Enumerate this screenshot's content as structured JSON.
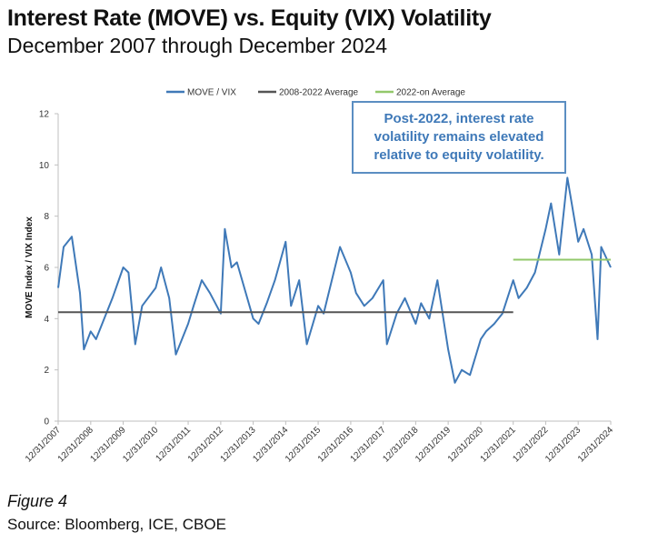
{
  "title": "Interest Rate (MOVE) vs. Equity (VIX) Volatility",
  "subtitle": "December 2007 through December 2024",
  "figure_label": "Figure 4",
  "source": "Source: Bloomberg, ICE, CBOE",
  "callout": {
    "line1": "Post-2022, interest rate",
    "line2": "volatility remains elevated",
    "line3": "relative to equity volatility."
  },
  "chart_data": {
    "type": "line",
    "ylabel": "MOVE Index / VIX Index",
    "ylim": [
      0,
      12
    ],
    "yticks": [
      "0",
      "2",
      "4",
      "6",
      "8",
      "10",
      "12"
    ],
    "xlim": [
      "2007-12-31",
      "2024-12-31"
    ],
    "xticks": [
      "12/31/2007",
      "12/31/2008",
      "12/31/2009",
      "12/31/2010",
      "12/31/2011",
      "12/31/2012",
      "12/31/2013",
      "12/31/2014",
      "12/31/2015",
      "12/31/2016",
      "12/31/2017",
      "12/31/2018",
      "12/31/2019",
      "12/31/2020",
      "12/31/2021",
      "12/31/2022",
      "12/31/2023",
      "12/31/2024"
    ],
    "grid": false,
    "legend_position": "top",
    "colors": {
      "move_vix": "#3f79b8",
      "avg_2008_2022": "#555555",
      "avg_2022_on": "#92c86a"
    },
    "series": [
      {
        "name": "MOVE / VIX",
        "x": [
          "2007-12-31",
          "2008-03-01",
          "2008-06-01",
          "2008-09-01",
          "2008-10-15",
          "2008-12-31",
          "2009-03-01",
          "2009-06-01",
          "2009-09-01",
          "2009-12-31",
          "2010-03-01",
          "2010-05-15",
          "2010-08-01",
          "2010-12-31",
          "2011-03-01",
          "2011-06-01",
          "2011-08-15",
          "2011-12-31",
          "2012-03-01",
          "2012-06-01",
          "2012-09-01",
          "2012-12-31",
          "2013-02-15",
          "2013-05-01",
          "2013-07-01",
          "2013-12-31",
          "2014-03-01",
          "2014-06-01",
          "2014-09-01",
          "2014-12-31",
          "2015-03-01",
          "2015-06-01",
          "2015-08-25",
          "2015-12-31",
          "2016-03-01",
          "2016-06-01",
          "2016-09-01",
          "2016-12-31",
          "2017-03-01",
          "2017-06-01",
          "2017-09-01",
          "2017-12-31",
          "2018-02-10",
          "2018-06-01",
          "2018-09-01",
          "2018-12-31",
          "2019-03-01",
          "2019-06-01",
          "2019-09-01",
          "2019-12-31",
          "2020-03-15",
          "2020-06-01",
          "2020-09-01",
          "2020-12-31",
          "2021-03-01",
          "2021-06-01",
          "2021-09-01",
          "2021-12-31",
          "2022-03-01",
          "2022-06-01",
          "2022-09-01",
          "2022-12-31",
          "2023-03-01",
          "2023-06-01",
          "2023-09-01",
          "2023-12-31",
          "2024-03-01",
          "2024-06-01",
          "2024-08-05",
          "2024-09-15",
          "2024-12-31"
        ],
        "values": [
          5.2,
          6.8,
          7.2,
          5.0,
          2.8,
          3.5,
          3.2,
          4.0,
          4.8,
          6.0,
          5.8,
          3.0,
          4.5,
          5.2,
          6.0,
          4.8,
          2.6,
          3.8,
          4.5,
          5.5,
          5.0,
          4.2,
          7.5,
          6.0,
          6.2,
          4.0,
          3.8,
          4.6,
          5.5,
          7.0,
          4.5,
          5.5,
          3.0,
          4.5,
          4.2,
          5.5,
          6.8,
          5.8,
          5.0,
          4.5,
          4.8,
          5.5,
          3.0,
          4.2,
          4.8,
          3.8,
          4.6,
          4.0,
          5.5,
          2.8,
          1.5,
          2.0,
          1.8,
          3.2,
          3.5,
          3.8,
          4.2,
          5.5,
          4.8,
          5.2,
          5.8,
          7.5,
          8.5,
          6.5,
          9.5,
          7.0,
          7.5,
          6.5,
          3.2,
          6.8,
          6.0
        ]
      },
      {
        "name": "2008-2022 Average",
        "x": [
          "2007-12-31",
          "2021-12-31"
        ],
        "values": [
          4.25,
          4.25
        ]
      },
      {
        "name": "2022-on Average",
        "x": [
          "2021-12-31",
          "2024-12-31"
        ],
        "values": [
          6.3,
          6.3
        ]
      }
    ]
  }
}
